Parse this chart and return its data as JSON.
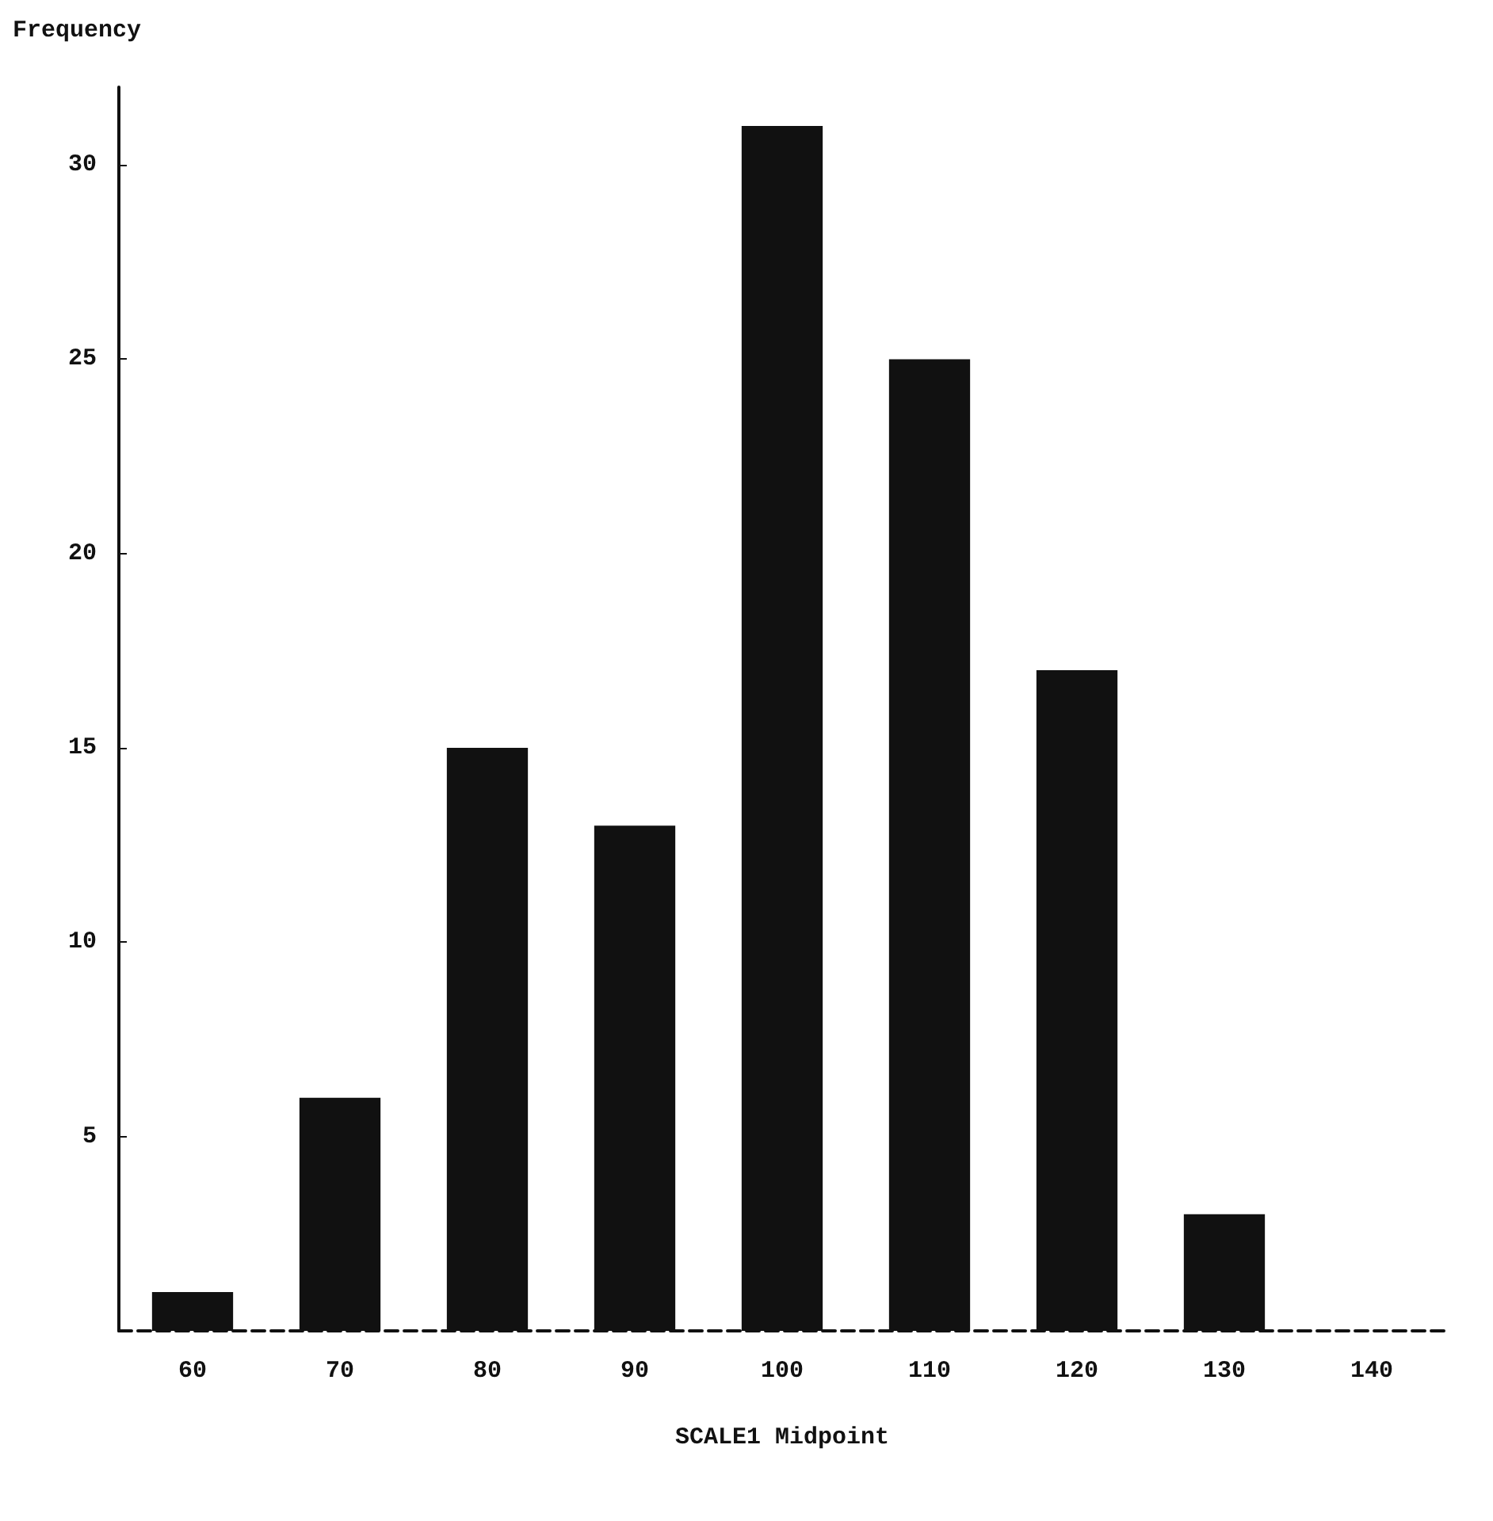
{
  "chart_data": {
    "type": "bar",
    "ylabel": "Frequency",
    "xlabel": "SCALE1 Midpoint",
    "categories": [
      "60",
      "70",
      "80",
      "90",
      "100",
      "110",
      "120",
      "130",
      "140"
    ],
    "values": [
      1,
      6,
      15,
      13,
      31,
      25,
      17,
      3,
      0
    ],
    "color": "#111111",
    "ylim": [
      0,
      32
    ],
    "yticks": [
      5,
      10,
      15,
      20,
      25,
      30
    ],
    "grid": false
  }
}
